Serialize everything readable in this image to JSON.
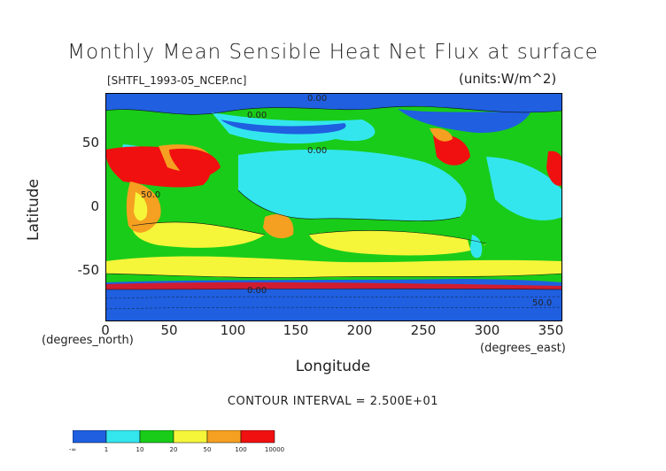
{
  "map": {
    "title": "Monthly Mean Sensible Heat Net Flux at surface",
    "file_label": "[SHTFL_1993-05_NCEP.nc]",
    "units_label": "(units:W/m^2)",
    "y_axis": {
      "label": "Latitude",
      "unit": "(degrees_north)",
      "ticks": [
        "50",
        "0",
        "-50"
      ]
    },
    "x_axis": {
      "label": "Longitude",
      "unit": "(degrees_east)",
      "ticks": [
        "0",
        "50",
        "100",
        "150",
        "200",
        "250",
        "300",
        "350"
      ]
    },
    "contour_interval": "CONTOUR INTERVAL = 2.500E+01",
    "contour_labels": [
      "0.00",
      "0.00",
      "0.00",
      "50.0",
      "50.0",
      "0.00"
    ],
    "legend": {
      "colors": [
        "#1f5fe0",
        "#33e6ee",
        "#19cc19",
        "#f5f53a",
        "#f5a020",
        "#f01010"
      ],
      "labels": [
        "-∞",
        "1",
        "10",
        "20",
        "50",
        "100",
        "10000"
      ]
    }
  }
}
